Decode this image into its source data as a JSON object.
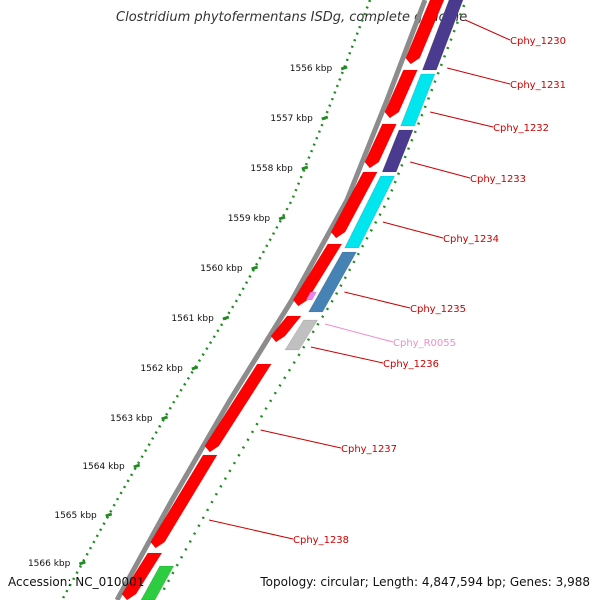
{
  "title": "Clostridium phytofermentans ISDg, complete genome",
  "footer": {
    "accession": "Accession: NC_010001",
    "summary": "Topology: circular; Length: 4,847,594 bp; Genes: 3,988"
  },
  "colors": {
    "backbone": "#8c8c8c",
    "forward_cds": "#ff0000",
    "reverse_dark": "#4b3b8f",
    "reverse_cyan": "#00e5ee",
    "reverse_steel": "#4682b4",
    "rna": "#ee82ee",
    "pseudo": "#c0c0c0",
    "green": "#2ecc40",
    "label_text": "#cc0000",
    "label_rna_text": "#f08cd0",
    "ticks": "#228b22"
  },
  "scale": {
    "ticks": [
      {
        "label": "1556 kbp"
      },
      {
        "label": "1557 kbp"
      },
      {
        "label": "1558 kbp"
      },
      {
        "label": "1559 kbp"
      },
      {
        "label": "1560 kbp"
      },
      {
        "label": "1561 kbp"
      },
      {
        "label": "1562 kbp"
      },
      {
        "label": "1563 kbp"
      },
      {
        "label": "1564 kbp"
      },
      {
        "label": "1565 kbp"
      },
      {
        "label": "1566 kbp"
      }
    ]
  },
  "genes": [
    {
      "label": "Cphy_1230",
      "kind": "cds"
    },
    {
      "label": "Cphy_1231",
      "kind": "cds"
    },
    {
      "label": "Cphy_1232",
      "kind": "cds"
    },
    {
      "label": "Cphy_1233",
      "kind": "cds"
    },
    {
      "label": "Cphy_1234",
      "kind": "cds"
    },
    {
      "label": "Cphy_1235",
      "kind": "cds"
    },
    {
      "label": "Cphy_R0055",
      "kind": "rna"
    },
    {
      "label": "Cphy_1236",
      "kind": "cds"
    },
    {
      "label": "Cphy_1237",
      "kind": "cds"
    },
    {
      "label": "Cphy_1238",
      "kind": "cds"
    }
  ]
}
